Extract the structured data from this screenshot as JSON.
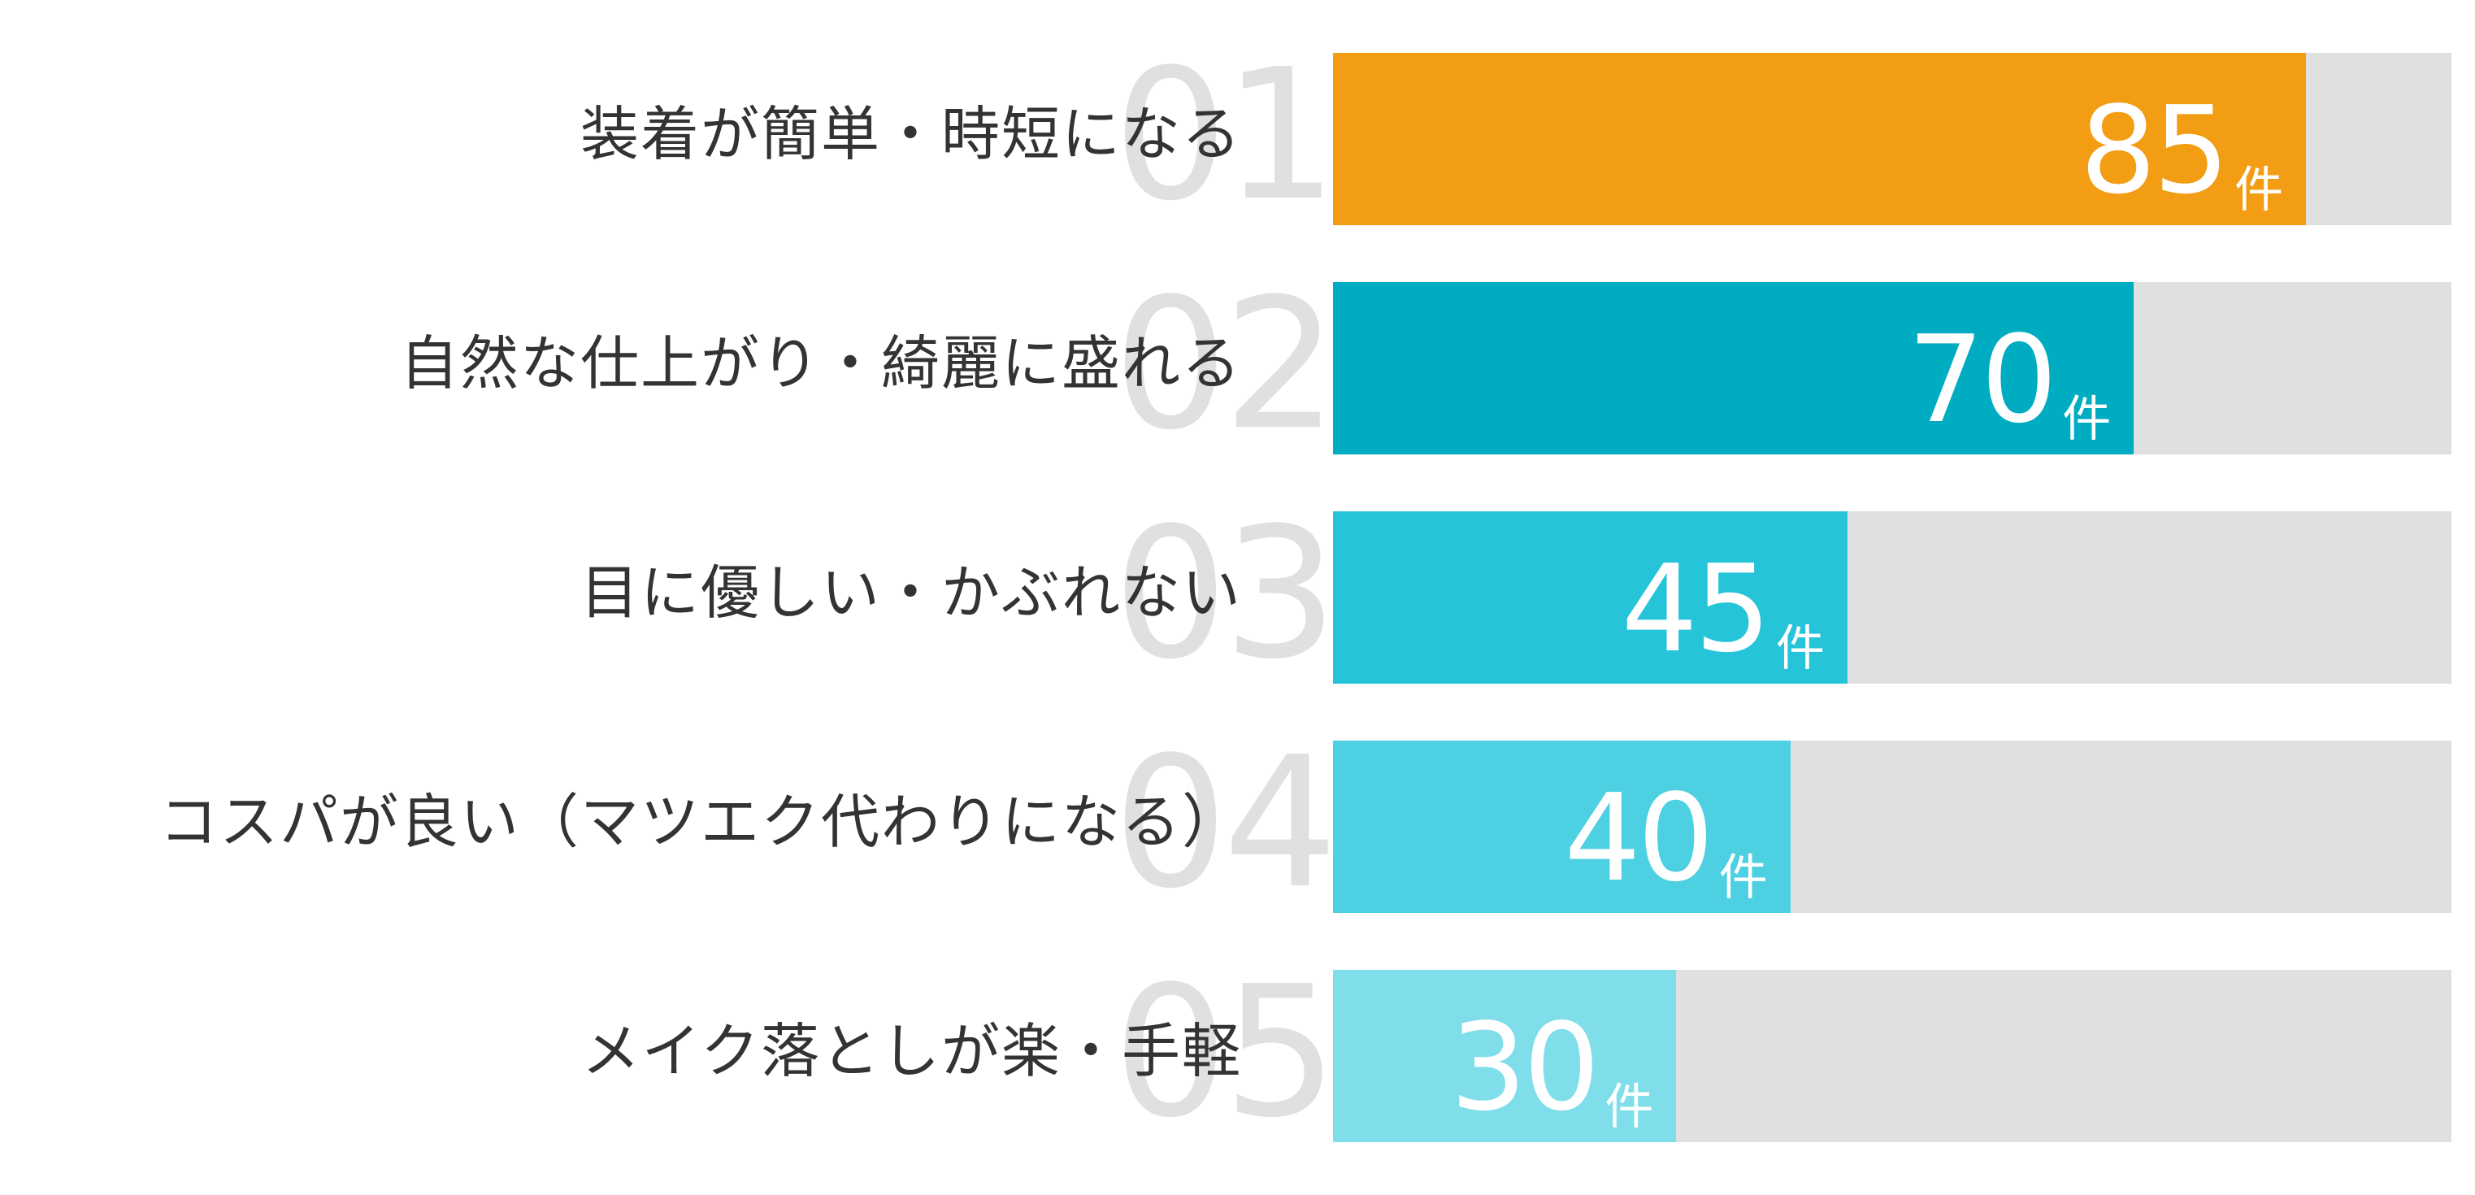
{
  "chart_data": {
    "type": "bar",
    "orientation": "horizontal",
    "title": "",
    "xlabel": "",
    "ylabel": "",
    "unit": "件",
    "xlim": [
      0,
      97.7
    ],
    "grid": false,
    "legend": null,
    "categories": [
      "装着が簡単・時短になる",
      "自然な仕上がり・綺麗に盛れる",
      "目に優しい・かぶれない",
      "コスパが良い（マツエク代わりになる）",
      "メイク落としが楽・手軽"
    ],
    "values": [
      85,
      70,
      45,
      40,
      30
    ],
    "ranks": [
      "01",
      "02",
      "03",
      "04",
      "05"
    ],
    "bar_colors": [
      "#F29D13",
      "#00ACC1",
      "#26C4D9",
      "#4DD0E1",
      "#80DEEA"
    ],
    "track_color": "#E0E0E0"
  },
  "rows": [
    {
      "rank": "01",
      "label": "装着が簡単・時短になる",
      "value": "85",
      "unit": "件",
      "pct": 87.0,
      "color": "#F29D13"
    },
    {
      "rank": "02",
      "label": "自然な仕上がり・綺麗に盛れる",
      "value": "70",
      "unit": "件",
      "pct": 71.6,
      "color": "#00ACC1"
    },
    {
      "rank": "03",
      "label": "目に優しい・かぶれない",
      "value": "45",
      "unit": "件",
      "pct": 46.0,
      "color": "#26C4D9"
    },
    {
      "rank": "04",
      "label": "コスパが良い（マツエク代わりになる）",
      "value": "40",
      "unit": "件",
      "pct": 40.9,
      "color": "#4DD0E1"
    },
    {
      "rank": "05",
      "label": "メイク落としが楽・手軽",
      "value": "30",
      "unit": "件",
      "pct": 30.7,
      "color": "#80DEEA"
    }
  ]
}
